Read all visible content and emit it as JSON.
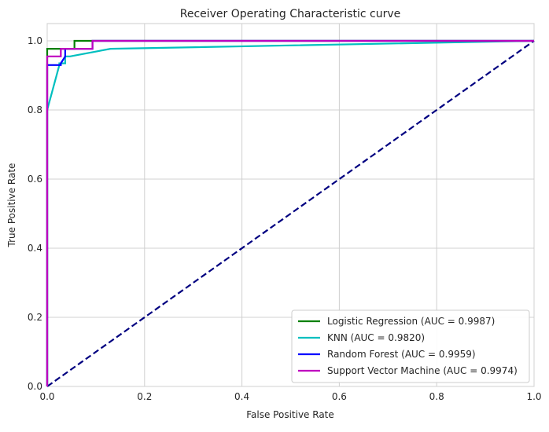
{
  "chart_data": {
    "type": "line",
    "title": "Receiver Operating Characteristic curve",
    "xlabel": "False Positive Rate",
    "ylabel": "True Positive Rate",
    "xlim": [
      0,
      1
    ],
    "ylim": [
      0,
      1.05
    ],
    "xticks": [
      0,
      0.2,
      0.4,
      0.6,
      0.8,
      1
    ],
    "xtick_labels": [
      "0.0",
      "0.2",
      "0.4",
      "0.6",
      "0.8",
      "1.0"
    ],
    "yticks": [
      0,
      0.2,
      0.4,
      0.6,
      0.8,
      1
    ],
    "ytick_labels": [
      "0.0",
      "0.2",
      "0.4",
      "0.6",
      "0.8",
      "1.0"
    ],
    "grid": true,
    "legend_position": "lower-right",
    "series": [
      {
        "name": "Logistic Regression (AUC = 0.9987)",
        "color": "#008000",
        "style": "solid",
        "x": [
          0,
          0,
          0,
          0.056,
          0.056,
          1
        ],
        "y": [
          0,
          0.8,
          0.977,
          0.977,
          1.0,
          1.0
        ]
      },
      {
        "name": "KNN (AUC = 0.9820)",
        "color": "#00bfbf",
        "style": "solid",
        "x": [
          0,
          0,
          0.025,
          0.025,
          0.037,
          0.037,
          0.047,
          0.13,
          1
        ],
        "y": [
          0,
          0.8,
          0.93,
          0.935,
          0.935,
          0.955,
          0.955,
          0.977,
          1.0
        ]
      },
      {
        "name": "Random Forest (AUC = 0.9959)",
        "color": "#0000ff",
        "style": "solid",
        "x": [
          0,
          0,
          0.028,
          0.028,
          0.037,
          0.037,
          0.093,
          0.093,
          1
        ],
        "y": [
          0,
          0.93,
          0.93,
          0.935,
          0.955,
          0.977,
          0.977,
          1.0,
          1.0
        ]
      },
      {
        "name": "Support Vector Machine (AUC = 0.9974)",
        "color": "#bf00bf",
        "style": "solid",
        "x": [
          0,
          0,
          0.028,
          0.028,
          0.093,
          0.093,
          1
        ],
        "y": [
          0,
          0.955,
          0.955,
          0.977,
          0.977,
          1.0,
          1.0
        ]
      },
      {
        "name": "",
        "color": "#000080",
        "style": "dashed",
        "x": [
          0,
          1
        ],
        "y": [
          0,
          1
        ]
      }
    ]
  }
}
